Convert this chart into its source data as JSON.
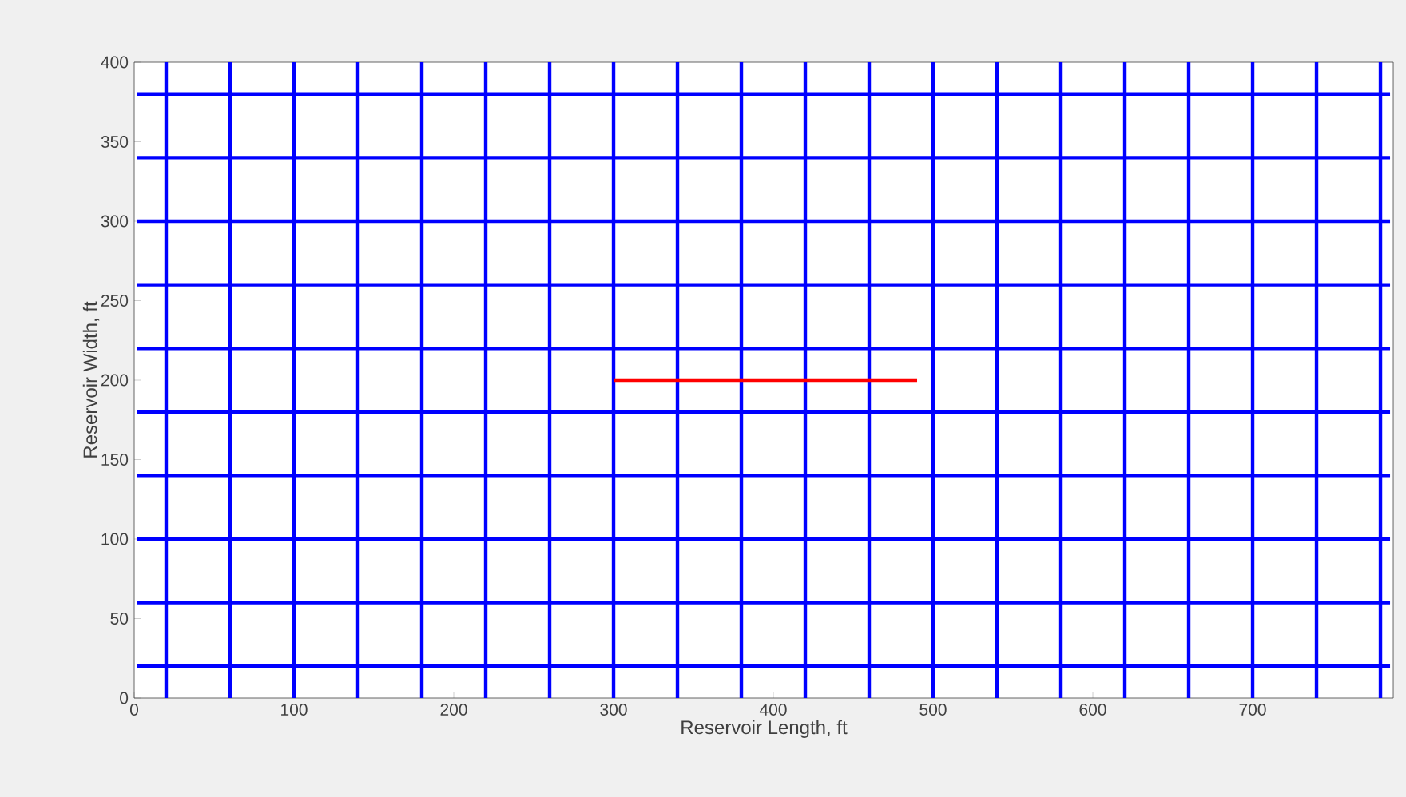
{
  "chart_data": {
    "type": "line",
    "xlabel": "Reservoir Length, ft",
    "ylabel": "Reservoir Width, ft",
    "xlim": [
      0,
      788
    ],
    "ylim": [
      0,
      400
    ],
    "xticks": [
      0,
      100,
      200,
      300,
      400,
      500,
      600,
      700
    ],
    "yticks": [
      0,
      50,
      100,
      150,
      200,
      250,
      300,
      350,
      400
    ],
    "grid": false,
    "marker": "none",
    "line_style": "solid",
    "series": [
      {
        "color": "#0000ff",
        "x": [
          20,
          20
        ],
        "values": [
          0,
          400
        ]
      },
      {
        "color": "#0000ff",
        "x": [
          60,
          60
        ],
        "values": [
          0,
          400
        ]
      },
      {
        "color": "#0000ff",
        "x": [
          100,
          100
        ],
        "values": [
          0,
          400
        ]
      },
      {
        "color": "#0000ff",
        "x": [
          140,
          140
        ],
        "values": [
          0,
          400
        ]
      },
      {
        "color": "#0000ff",
        "x": [
          180,
          180
        ],
        "values": [
          0,
          400
        ]
      },
      {
        "color": "#0000ff",
        "x": [
          220,
          220
        ],
        "values": [
          0,
          400
        ]
      },
      {
        "color": "#0000ff",
        "x": [
          260,
          260
        ],
        "values": [
          0,
          400
        ]
      },
      {
        "color": "#0000ff",
        "x": [
          300,
          300
        ],
        "values": [
          0,
          400
        ]
      },
      {
        "color": "#0000ff",
        "x": [
          340,
          340
        ],
        "values": [
          0,
          400
        ]
      },
      {
        "color": "#0000ff",
        "x": [
          380,
          380
        ],
        "values": [
          0,
          400
        ]
      },
      {
        "color": "#0000ff",
        "x": [
          420,
          420
        ],
        "values": [
          0,
          400
        ]
      },
      {
        "color": "#0000ff",
        "x": [
          460,
          460
        ],
        "values": [
          0,
          400
        ]
      },
      {
        "color": "#0000ff",
        "x": [
          500,
          500
        ],
        "values": [
          0,
          400
        ]
      },
      {
        "color": "#0000ff",
        "x": [
          540,
          540
        ],
        "values": [
          0,
          400
        ]
      },
      {
        "color": "#0000ff",
        "x": [
          580,
          580
        ],
        "values": [
          0,
          400
        ]
      },
      {
        "color": "#0000ff",
        "x": [
          620,
          620
        ],
        "values": [
          0,
          400
        ]
      },
      {
        "color": "#0000ff",
        "x": [
          660,
          660
        ],
        "values": [
          0,
          400
        ]
      },
      {
        "color": "#0000ff",
        "x": [
          700,
          700
        ],
        "values": [
          0,
          400
        ]
      },
      {
        "color": "#0000ff",
        "x": [
          740,
          740
        ],
        "values": [
          0,
          400
        ]
      },
      {
        "color": "#0000ff",
        "x": [
          780,
          780
        ],
        "values": [
          0,
          400
        ]
      },
      {
        "color": "#0000ff",
        "x": [
          2,
          786
        ],
        "values": [
          20,
          20
        ]
      },
      {
        "color": "#0000ff",
        "x": [
          2,
          786
        ],
        "values": [
          60,
          60
        ]
      },
      {
        "color": "#0000ff",
        "x": [
          2,
          786
        ],
        "values": [
          100,
          100
        ]
      },
      {
        "color": "#0000ff",
        "x": [
          2,
          786
        ],
        "values": [
          140,
          140
        ]
      },
      {
        "color": "#0000ff",
        "x": [
          2,
          786
        ],
        "values": [
          180,
          180
        ]
      },
      {
        "color": "#0000ff",
        "x": [
          2,
          786
        ],
        "values": [
          220,
          220
        ]
      },
      {
        "color": "#0000ff",
        "x": [
          2,
          786
        ],
        "values": [
          260,
          260
        ]
      },
      {
        "color": "#0000ff",
        "x": [
          2,
          786
        ],
        "values": [
          300,
          300
        ]
      },
      {
        "color": "#0000ff",
        "x": [
          2,
          786
        ],
        "values": [
          340,
          340
        ]
      },
      {
        "color": "#0000ff",
        "x": [
          2,
          786
        ],
        "values": [
          380,
          380
        ]
      },
      {
        "color": "#ff0000",
        "x": [
          300,
          490
        ],
        "values": [
          200,
          200
        ]
      }
    ]
  }
}
